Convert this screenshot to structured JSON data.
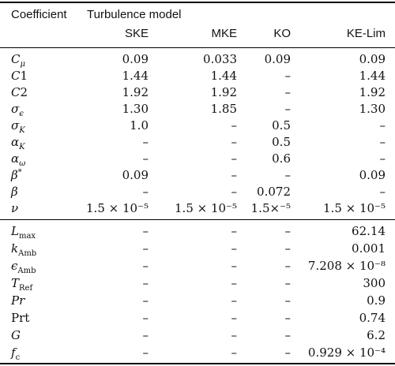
{
  "header": {
    "coefficient_label": "Coefficient",
    "group_label": "Turbulence model",
    "models": [
      "SKE",
      "MKE",
      "KO",
      "KE-Lim"
    ]
  },
  "rows_group1": [
    {
      "symbol": "C",
      "sub": "μ",
      "sup": "",
      "values": [
        "0.09",
        "0.033",
        "0.09",
        "0.09"
      ]
    },
    {
      "symbol": "C",
      "sub": "",
      "sup": "",
      "tail": "1",
      "values": [
        "1.44",
        "1.44",
        "–",
        "1.44"
      ]
    },
    {
      "symbol": "C",
      "sub": "",
      "sup": "",
      "tail": "2",
      "values": [
        "1.92",
        "1.92",
        "–",
        "1.92"
      ]
    },
    {
      "symbol": "σ",
      "sub": "ϵ",
      "sup": "",
      "values": [
        "1.30",
        "1.85",
        "–",
        "1.30"
      ]
    },
    {
      "symbol": "σ",
      "sub": "K",
      "sup": "",
      "values": [
        "1.0",
        "–",
        "0.5",
        "–"
      ]
    },
    {
      "symbol": "α",
      "sub": "K",
      "sup": "",
      "values": [
        "–",
        "–",
        "0.5",
        "–"
      ]
    },
    {
      "symbol": "α",
      "sub": "ω",
      "sup": "",
      "values": [
        "–",
        "–",
        "0.6",
        "–"
      ]
    },
    {
      "symbol": "β",
      "sub": "",
      "sup": "*",
      "values": [
        "0.09",
        "–",
        "–",
        "0.09"
      ]
    },
    {
      "symbol": "β",
      "sub": "",
      "sup": "",
      "values": [
        "–",
        "–",
        "0.072",
        "–"
      ]
    },
    {
      "symbol": "ν",
      "sub": "",
      "sup": "",
      "values": [
        "1.5 × 10⁻⁵",
        "1.5 × 10⁻⁵",
        "1.5×⁻⁵",
        "1.5 × 10⁻⁵"
      ]
    }
  ],
  "rows_group2": [
    {
      "symbol": "L",
      "sub": "max",
      "sub_roman": true,
      "values": [
        "–",
        "–",
        "–",
        "62.14"
      ]
    },
    {
      "symbol": "k",
      "sub": "Amb",
      "sub_roman": true,
      "values": [
        "–",
        "–",
        "–",
        "0.001"
      ]
    },
    {
      "symbol": "ϵ",
      "sub": "Amb",
      "sub_roman": true,
      "values": [
        "–",
        "–",
        "–",
        "7.208 × 10⁻⁸"
      ]
    },
    {
      "symbol": "T",
      "sub": "Ref",
      "sub_roman": true,
      "values": [
        "–",
        "–",
        "–",
        "300"
      ]
    },
    {
      "symbol": "Pr",
      "sub": "",
      "values": [
        "–",
        "–",
        "–",
        "0.9"
      ]
    },
    {
      "symbol": "Prt",
      "sub": "",
      "roman": true,
      "values": [
        "–",
        "–",
        "–",
        "0.74"
      ]
    },
    {
      "symbol": "G",
      "sub": "",
      "values": [
        "–",
        "–",
        "–",
        "6.2"
      ]
    },
    {
      "symbol": "f",
      "sub": "c",
      "sub_roman": true,
      "values": [
        "–",
        "–",
        "–",
        "0.929 × 10⁻⁴"
      ]
    }
  ]
}
